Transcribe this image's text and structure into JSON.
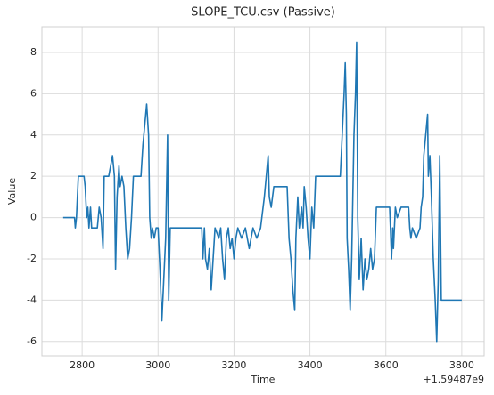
{
  "chart_data": {
    "type": "line",
    "title": "SLOPE_TCU.csv (Passive)",
    "x_label": "Time",
    "y_label": "Value",
    "x_offset_label": "+1.59487e9",
    "x": [
      2750,
      2780,
      2782,
      2785,
      2790,
      2805,
      2808,
      2812,
      2815,
      2818,
      2822,
      2825,
      2840,
      2845,
      2850,
      2855,
      2858,
      2870,
      2880,
      2885,
      2888,
      2892,
      2897,
      2900,
      2905,
      2910,
      2915,
      2920,
      2925,
      2930,
      2935,
      2955,
      2960,
      2965,
      2970,
      2975,
      2978,
      2982,
      2985,
      2990,
      2995,
      3000,
      3005,
      3010,
      3015,
      3020,
      3025,
      3028,
      3032,
      3115,
      3118,
      3122,
      3125,
      3130,
      3135,
      3140,
      3145,
      3150,
      3160,
      3165,
      3170,
      3175,
      3180,
      3185,
      3190,
      3195,
      3200,
      3205,
      3210,
      3220,
      3230,
      3240,
      3250,
      3260,
      3270,
      3280,
      3285,
      3290,
      3293,
      3298,
      3305,
      3340,
      3345,
      3350,
      3355,
      3360,
      3363,
      3368,
      3372,
      3378,
      3382,
      3385,
      3390,
      3395,
      3400,
      3405,
      3410,
      3415,
      3480,
      3485,
      3490,
      3493,
      3496,
      3498,
      3502,
      3506,
      3510,
      3513,
      3516,
      3520,
      3523,
      3526,
      3530,
      3535,
      3540,
      3545,
      3550,
      3555,
      3560,
      3565,
      3570,
      3575,
      3610,
      3615,
      3618,
      3620,
      3625,
      3630,
      3640,
      3660,
      3663,
      3666,
      3670,
      3680,
      3690,
      3693,
      3697,
      3700,
      3705,
      3710,
      3712,
      3716,
      3720,
      3725,
      3730,
      3734,
      3738,
      3742,
      3746,
      3800
    ],
    "series": [
      {
        "name": "SLOPE_TCU",
        "color": "#1f77b4",
        "values": [
          0,
          0,
          -0.5,
          0,
          2,
          2,
          1.5,
          0,
          0.5,
          -0.5,
          0.5,
          -0.5,
          -0.5,
          0.5,
          0,
          -1.5,
          2,
          2,
          3,
          2,
          -2.5,
          1,
          2.5,
          1.5,
          2,
          1.5,
          -0.5,
          -2,
          -1.5,
          0,
          2,
          2,
          3.5,
          4.5,
          5.5,
          4,
          0,
          -1,
          -0.5,
          -1,
          -0.5,
          -0.5,
          -2.5,
          -5,
          -3,
          -1,
          4,
          -4,
          -0.5,
          -0.5,
          -2,
          -0.5,
          -2,
          -2.5,
          -1.5,
          -3.5,
          -2,
          -0.5,
          -1,
          -0.5,
          -2,
          -3,
          -1,
          -0.5,
          -1.5,
          -1,
          -2,
          -1,
          -0.5,
          -1,
          -0.5,
          -1.5,
          -0.5,
          -1,
          -0.5,
          1,
          2,
          3,
          1,
          0.5,
          1.5,
          1.5,
          -1,
          -2,
          -3.5,
          -4.5,
          -1,
          1,
          -0.5,
          0.5,
          -0.5,
          1.5,
          0.5,
          -1,
          -2,
          0.5,
          -0.5,
          2,
          2,
          4,
          6,
          7.5,
          5,
          -1,
          -2.5,
          -4.5,
          -2,
          1,
          4,
          6,
          8.5,
          0,
          -3,
          -1,
          -3.5,
          -2,
          -3,
          -2.5,
          -1.5,
          -2.5,
          -2,
          0.5,
          0.5,
          -2,
          -0.5,
          -1.5,
          0.5,
          0,
          0.5,
          0.5,
          -0.5,
          -1,
          -0.5,
          -1,
          -0.5,
          0.5,
          1,
          3,
          4,
          5,
          2,
          3,
          1,
          -2,
          -4,
          -6,
          -3,
          3,
          -4,
          -4
        ]
      }
    ],
    "xlim": [
      2694,
      3859
    ],
    "ylim": [
      -6.7,
      9.25
    ],
    "xticks": [
      2800,
      3000,
      3200,
      3400,
      3600,
      3800
    ],
    "yticks": [
      -6,
      -4,
      -2,
      0,
      2,
      4,
      6,
      8
    ],
    "grid": true
  }
}
